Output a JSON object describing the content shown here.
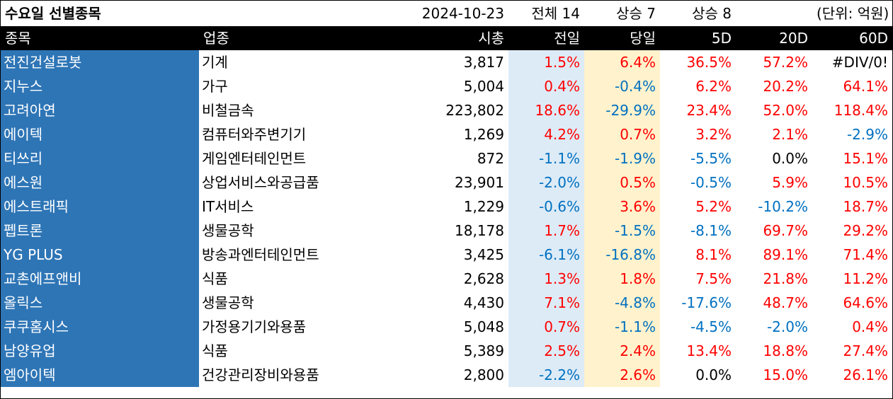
{
  "title": "수요일 선별종목",
  "date": "2024-10-23",
  "total_label": "전체 14",
  "up_today_label": "상승 7",
  "up_5d_label": "상승 8",
  "unit_label": "(단위: 억원)",
  "headers": [
    "종목",
    "업종",
    "시총",
    "전일",
    "당일",
    "5D",
    "20D",
    "60D"
  ],
  "rows": [
    {
      "name": "전진건설로봇",
      "sector": "기계",
      "cap": "3,817",
      "prev": "1.5%",
      "today": "6.4%",
      "d5": "36.5%",
      "d20": "57.2%",
      "d60": "#DIV/0!"
    },
    {
      "name": "지누스",
      "sector": "가구",
      "cap": "5,004",
      "prev": "0.4%",
      "today": "-0.4%",
      "d5": "6.2%",
      "d20": "20.2%",
      "d60": "64.1%"
    },
    {
      "name": "고려아연",
      "sector": "비철금속",
      "cap": "223,802",
      "prev": "18.6%",
      "today": "-29.9%",
      "d5": "23.4%",
      "d20": "52.0%",
      "d60": "118.4%"
    },
    {
      "name": "에이텍",
      "sector": "컴퓨터와주변기기",
      "cap": "1,269",
      "prev": "4.2%",
      "today": "0.7%",
      "d5": "3.2%",
      "d20": "2.1%",
      "d60": "-2.9%"
    },
    {
      "name": "티쓰리",
      "sector": "게임엔터테인먼트",
      "cap": "872",
      "prev": "-1.1%",
      "today": "-1.9%",
      "d5": "-5.5%",
      "d20": "0.0%",
      "d60": "15.1%"
    },
    {
      "name": "에스원",
      "sector": "상업서비스와공급품",
      "cap": "23,901",
      "prev": "-2.0%",
      "today": "0.5%",
      "d5": "-0.5%",
      "d20": "5.9%",
      "d60": "10.5%"
    },
    {
      "name": "에스트래픽",
      "sector": "IT서비스",
      "cap": "1,229",
      "prev": "-0.6%",
      "today": "3.6%",
      "d5": "5.2%",
      "d20": "-10.2%",
      "d60": "18.7%"
    },
    {
      "name": "펩트론",
      "sector": "생물공학",
      "cap": "18,178",
      "prev": "1.7%",
      "today": "-1.5%",
      "d5": "-8.1%",
      "d20": "69.7%",
      "d60": "29.2%"
    },
    {
      "name": "YG PLUS",
      "sector": "방송과엔터테인먼트",
      "cap": "3,425",
      "prev": "-6.1%",
      "today": "-16.8%",
      "d5": "8.1%",
      "d20": "89.1%",
      "d60": "71.4%"
    },
    {
      "name": "교촌에프앤비",
      "sector": "식품",
      "cap": "2,628",
      "prev": "1.3%",
      "today": "1.8%",
      "d5": "7.5%",
      "d20": "21.8%",
      "d60": "11.2%"
    },
    {
      "name": "올릭스",
      "sector": "생물공학",
      "cap": "4,430",
      "prev": "7.1%",
      "today": "-4.8%",
      "d5": "-17.6%",
      "d20": "48.7%",
      "d60": "64.6%"
    },
    {
      "name": "쿠쿠홈시스",
      "sector": "가정용기기와용품",
      "cap": "5,048",
      "prev": "0.7%",
      "today": "-1.1%",
      "d5": "-4.5%",
      "d20": "-2.0%",
      "d60": "0.4%"
    },
    {
      "name": "남양유업",
      "sector": "식품",
      "cap": "5,389",
      "prev": "2.5%",
      "today": "2.4%",
      "d5": "13.4%",
      "d20": "18.8%",
      "d60": "27.4%"
    },
    {
      "name": "엠아이텍",
      "sector": "건강관리장비와용품",
      "cap": "2,800",
      "prev": "-2.2%",
      "today": "2.6%",
      "d5": "0.0%",
      "d20": "15.0%",
      "d60": "26.1%"
    }
  ],
  "colors": {
    "title": "#ffc000",
    "header_bg": "#000000",
    "name_bg": "#2e75b6",
    "prev_bg": "#ddebf7",
    "today_bg": "#fff2cc",
    "positive": "#ff0000",
    "negative": "#0070c0"
  }
}
